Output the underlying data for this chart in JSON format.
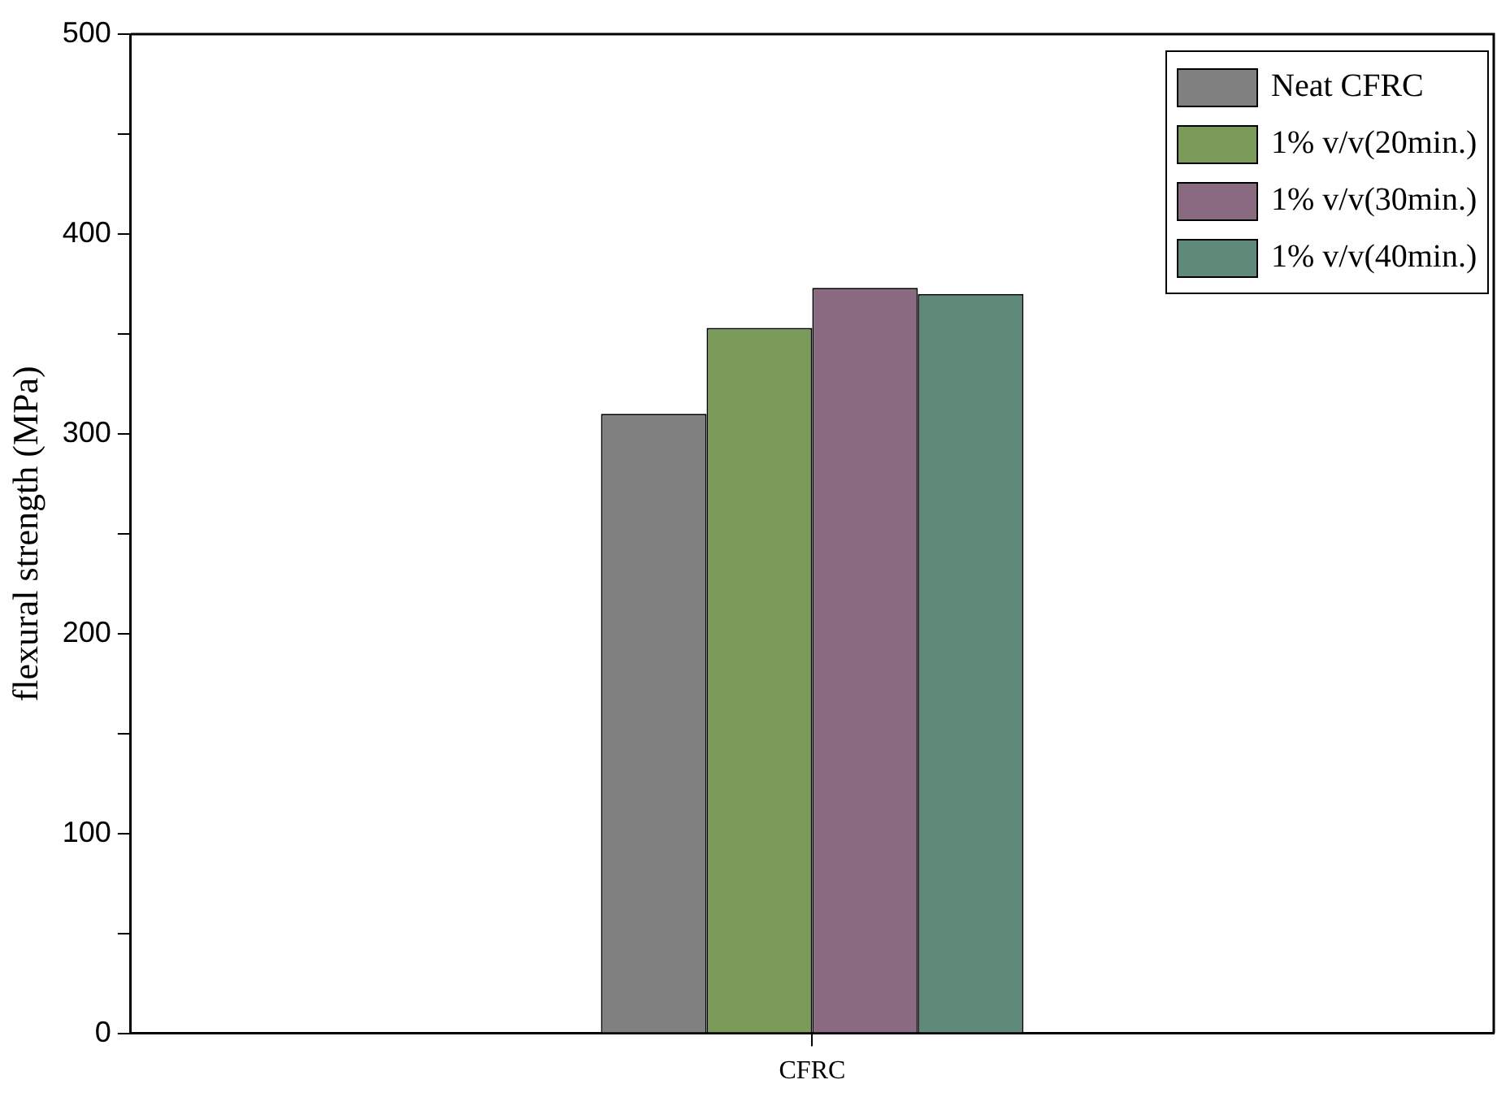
{
  "chart_data": {
    "type": "bar",
    "ylabel": "flexural strength (MPa)",
    "categories": [
      "CFRC"
    ],
    "series": [
      {
        "name": "Neat CFRC",
        "color": "#808080",
        "values": [
          310
        ]
      },
      {
        "name": "1% v/v(20min.)",
        "color": "#7a9a5a",
        "values": [
          353
        ]
      },
      {
        "name": "1% v/v(30min.)",
        "color": "#8a6a80",
        "values": [
          373
        ]
      },
      {
        "name": "1% v/v(40min.)",
        "color": "#5f8a7a",
        "values": [
          370
        ]
      }
    ],
    "ylim": [
      0,
      500
    ],
    "yticks": [
      0,
      {
        "value": 50,
        "label": null
      },
      100,
      {
        "value": 150,
        "label": null
      },
      200,
      {
        "value": 250,
        "label": null
      },
      300,
      {
        "value": 350,
        "label": null
      },
      400,
      {
        "value": 450,
        "label": null
      },
      500
    ],
    "grid": false,
    "legend": "top right"
  }
}
